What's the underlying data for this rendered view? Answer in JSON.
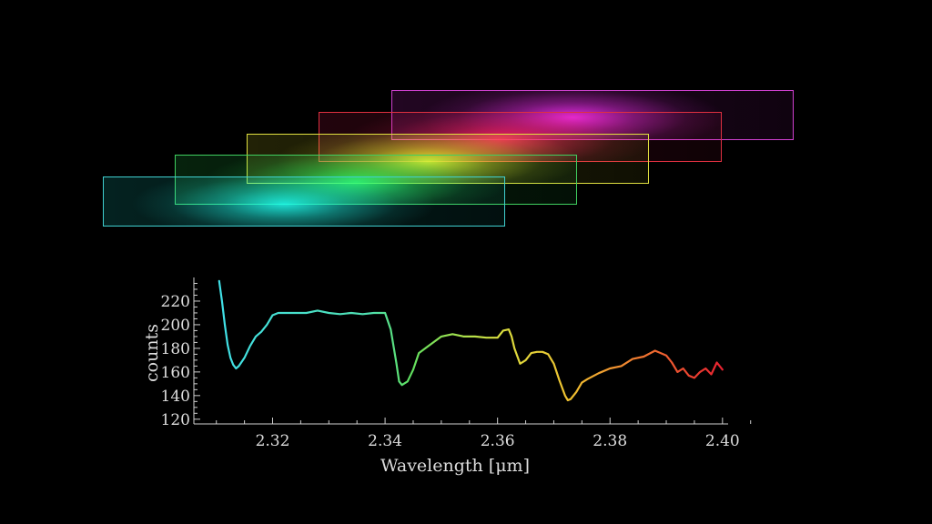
{
  "strips": [
    {
      "name": "strip-magenta",
      "color": "#d040d0",
      "glow": "#ff30ff",
      "range": [
        2.38,
        2.4
      ]
    },
    {
      "name": "strip-red",
      "color": "#e03040",
      "glow": "#ff2060",
      "range": [
        2.37,
        2.39
      ]
    },
    {
      "name": "strip-yellow",
      "color": "#e0e040",
      "glow": "#ffff30",
      "range": [
        2.35,
        2.37
      ]
    },
    {
      "name": "strip-green",
      "color": "#40d060",
      "glow": "#30ff60",
      "range": [
        2.335,
        2.355
      ]
    },
    {
      "name": "strip-cyan",
      "color": "#40d0d0",
      "glow": "#20fff0",
      "range": [
        2.31,
        2.33
      ]
    }
  ],
  "chart_data": {
    "type": "line",
    "xlabel": "Wavelength [μm]",
    "ylabel": "counts",
    "xlim": [
      2.306,
      2.401
    ],
    "ylim": [
      116,
      240
    ],
    "xticks": [
      "2.32",
      "2.34",
      "2.36",
      "2.38",
      "2.40"
    ],
    "yticks": [
      "120",
      "140",
      "160",
      "180",
      "200",
      "220"
    ],
    "series": [
      {
        "x": [
          2.3105,
          2.311,
          2.3115,
          2.312,
          2.3125,
          2.313,
          2.3135,
          2.314,
          2.315,
          2.316,
          2.317,
          2.318,
          2.319,
          2.32,
          2.321,
          2.322,
          2.324,
          2.326,
          2.328,
          2.33,
          2.332,
          2.334,
          2.336,
          2.338,
          2.34,
          2.341,
          2.342,
          2.3425,
          2.343,
          2.344,
          2.345,
          2.346,
          2.348,
          2.35,
          2.352,
          2.354,
          2.356,
          2.358,
          2.36,
          2.361,
          2.362,
          2.3625,
          2.363,
          2.364,
          2.365,
          2.366,
          2.367,
          2.368,
          2.369,
          2.37,
          2.371,
          2.372,
          2.3725,
          2.373,
          2.374,
          2.375,
          2.376,
          2.378,
          2.38,
          2.382,
          2.384,
          2.386,
          2.388,
          2.389,
          2.39,
          2.391,
          2.392,
          2.393,
          2.394,
          2.395,
          2.396,
          2.397,
          2.398,
          2.399,
          2.4
        ],
        "y": [
          237,
          220,
          200,
          183,
          172,
          166,
          163,
          165,
          172,
          182,
          190,
          194,
          200,
          208,
          210,
          210,
          210,
          210,
          212,
          210,
          209,
          210,
          209,
          210,
          210,
          196,
          168,
          152,
          149,
          152,
          162,
          176,
          183,
          190,
          192,
          190,
          190,
          189,
          189,
          195,
          196,
          190,
          180,
          167,
          170,
          176,
          177,
          177,
          175,
          167,
          153,
          140,
          136,
          137,
          143,
          151,
          154,
          159,
          163,
          165,
          171,
          173,
          178,
          176,
          174,
          168,
          160,
          163,
          157,
          155,
          160,
          163,
          158,
          168,
          162
        ]
      }
    ]
  }
}
